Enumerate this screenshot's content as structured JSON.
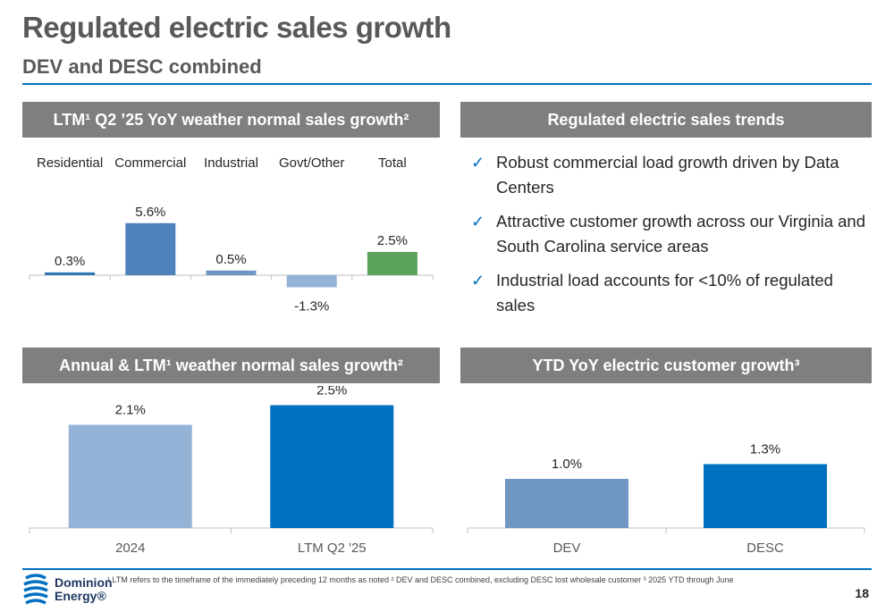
{
  "header": {
    "title": "Regulated electric sales growth",
    "subtitle": "DEV and DESC combined"
  },
  "panels": {
    "top_left": "LTM¹ Q2 ’25 YoY weather normal sales growth²",
    "top_right": "Regulated electric sales trends",
    "bottom_left": "Annual & LTM¹ weather normal sales growth²",
    "bottom_right": "YTD YoY electric customer growth³"
  },
  "trends": [
    "Robust commercial load growth driven by Data Centers",
    "Attractive customer growth across our Virginia and South Carolina service areas",
    "Industrial load accounts for <10% of regulated sales"
  ],
  "check_icon": "✓",
  "footer": {
    "footnote": "¹ LTM refers to the timeframe of the immediately preceding 12 months as noted ² DEV and DESC combined, excluding DESC lost wholesale customer ³ 2025 YTD through June",
    "page_number": "18",
    "logo_line1": "Dominion",
    "logo_line2": "Energy®"
  },
  "colors": {
    "blue_dark": "#0070c0",
    "blue_mid": "#4f81bd",
    "blue_light": "#95b3d7",
    "steel": "#7096c3",
    "green": "#5ba35d",
    "header_gray": "#7f7f7f"
  },
  "chart_data": [
    {
      "type": "bar",
      "categories": [
        "Residential",
        "Commercial",
        "Industrial",
        "Govt/Other",
        "Total"
      ],
      "values": [
        0.3,
        5.6,
        0.5,
        -1.3,
        2.5
      ],
      "labels": [
        "0.3%",
        "5.6%",
        "0.5%",
        "-1.3%",
        "2.5%"
      ],
      "colors": [
        "#2f75b5",
        "#4f81bd",
        "#7096c3",
        "#95b3d7",
        "#5ba35d"
      ],
      "ylim": [
        -2,
        6.5
      ],
      "category_position": "top"
    },
    {
      "type": "bar",
      "categories": [
        "2024",
        "LTM Q2 '25"
      ],
      "values": [
        2.1,
        2.5
      ],
      "labels": [
        "2.1%",
        "2.5%"
      ],
      "colors": [
        "#95b3d7",
        "#0070c0"
      ],
      "ylim": [
        0,
        2.8
      ]
    },
    {
      "type": "bar",
      "categories": [
        "DEV",
        "DESC"
      ],
      "values": [
        1.0,
        1.3
      ],
      "labels": [
        "1.0%",
        "1.3%"
      ],
      "colors": [
        "#7096c3",
        "#0070c0"
      ],
      "ylim": [
        0,
        2.8
      ]
    }
  ]
}
